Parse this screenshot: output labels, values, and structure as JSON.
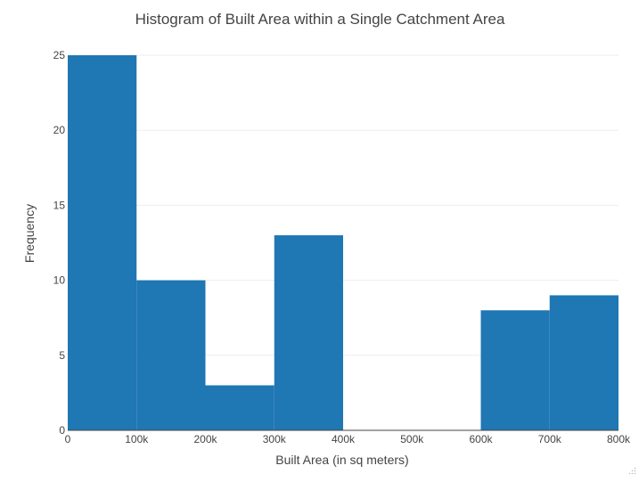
{
  "chart_data": {
    "type": "bar",
    "title": "Histogram of Built Area within a Single Catchment Area",
    "xlabel": "Built Area (in sq meters)",
    "ylabel": "Frequency",
    "bin_edges": [
      0,
      100000,
      200000,
      300000,
      400000,
      500000,
      600000,
      700000,
      800000
    ],
    "values": [
      25,
      10,
      3,
      13,
      0,
      0,
      8,
      9
    ],
    "xlim": [
      0,
      800000
    ],
    "ylim": [
      0,
      25
    ],
    "x_ticks": [
      0,
      100000,
      200000,
      300000,
      400000,
      500000,
      600000,
      700000,
      800000
    ],
    "x_tick_labels": [
      "0",
      "100k",
      "200k",
      "300k",
      "400k",
      "500k",
      "600k",
      "700k",
      "800k"
    ],
    "y_ticks": [
      0,
      5,
      10,
      15,
      20,
      25
    ],
    "y_tick_labels": [
      "0",
      "5",
      "10",
      "15",
      "20",
      "25"
    ],
    "grid": "horizontal",
    "bar_color": "#1f77b4"
  },
  "colors": {
    "bar": "#1f77b4",
    "grid": "#eeeeee",
    "axis_text": "#444444",
    "title_text": "#444444"
  }
}
